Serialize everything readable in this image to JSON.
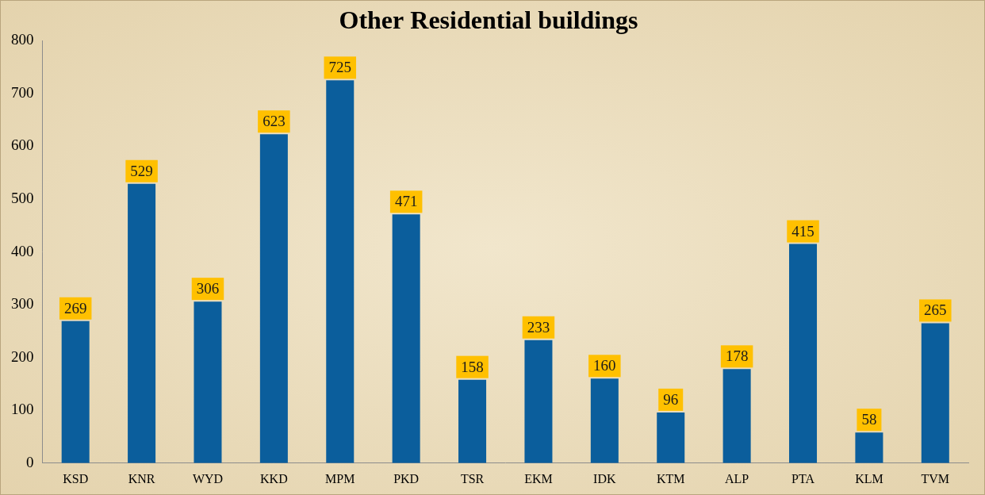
{
  "chart_data": {
    "type": "bar",
    "title": "Other Residential buildings",
    "categories": [
      "KSD",
      "KNR",
      "WYD",
      "KKD",
      "MPM",
      "PKD",
      "TSR",
      "EKM",
      "IDK",
      "KTM",
      "ALP",
      "PTA",
      "KLM",
      "TVM"
    ],
    "values": [
      269,
      529,
      306,
      623,
      725,
      471,
      158,
      233,
      160,
      96,
      178,
      415,
      58,
      265
    ],
    "color": "#1a8fd8",
    "ylim": [
      0,
      800
    ],
    "yticks": [
      0,
      100,
      200,
      300,
      400,
      500,
      600,
      700,
      800
    ],
    "grid": false,
    "data_labels": true
  }
}
